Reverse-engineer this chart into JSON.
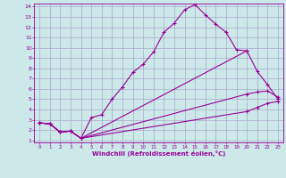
{
  "background_color": "#cce8e8",
  "grid_color": "#aaaacc",
  "line_color": "#990099",
  "marker": "+",
  "xlabel": "Windchill (Refroidissement éolien,°C)",
  "xlim": [
    -0.5,
    23.5
  ],
  "ylim": [
    0.8,
    14.3
  ],
  "xticks": [
    0,
    1,
    2,
    3,
    4,
    5,
    6,
    7,
    8,
    9,
    10,
    11,
    12,
    13,
    14,
    15,
    16,
    17,
    18,
    19,
    20,
    21,
    22,
    23
  ],
  "yticks": [
    1,
    2,
    3,
    4,
    5,
    6,
    7,
    8,
    9,
    10,
    11,
    12,
    13,
    14
  ],
  "line1_x": [
    0,
    1,
    2,
    3,
    4,
    5,
    6,
    7,
    8,
    9,
    10,
    11,
    12,
    13,
    14,
    15,
    16,
    17,
    18,
    19,
    20
  ],
  "line1_y": [
    2.7,
    2.6,
    1.8,
    1.9,
    1.2,
    3.2,
    3.5,
    5.0,
    6.2,
    7.6,
    8.4,
    9.6,
    11.5,
    12.4,
    13.7,
    14.2,
    13.2,
    12.3,
    11.5,
    9.8,
    9.7
  ],
  "line2_x": [
    0,
    1,
    2,
    3,
    4,
    20,
    21,
    22,
    23
  ],
  "line2_y": [
    2.7,
    2.6,
    1.8,
    1.9,
    1.2,
    9.7,
    7.7,
    6.4,
    5.0
  ],
  "line3_x": [
    0,
    1,
    2,
    3,
    4,
    20,
    21,
    22,
    23
  ],
  "line3_y": [
    2.7,
    2.6,
    1.8,
    1.9,
    1.2,
    5.5,
    5.7,
    5.8,
    5.2
  ],
  "line4_x": [
    0,
    1,
    2,
    3,
    4,
    20,
    21,
    22,
    23
  ],
  "line4_y": [
    2.7,
    2.6,
    1.8,
    1.9,
    1.2,
    3.8,
    4.2,
    4.6,
    4.8
  ]
}
